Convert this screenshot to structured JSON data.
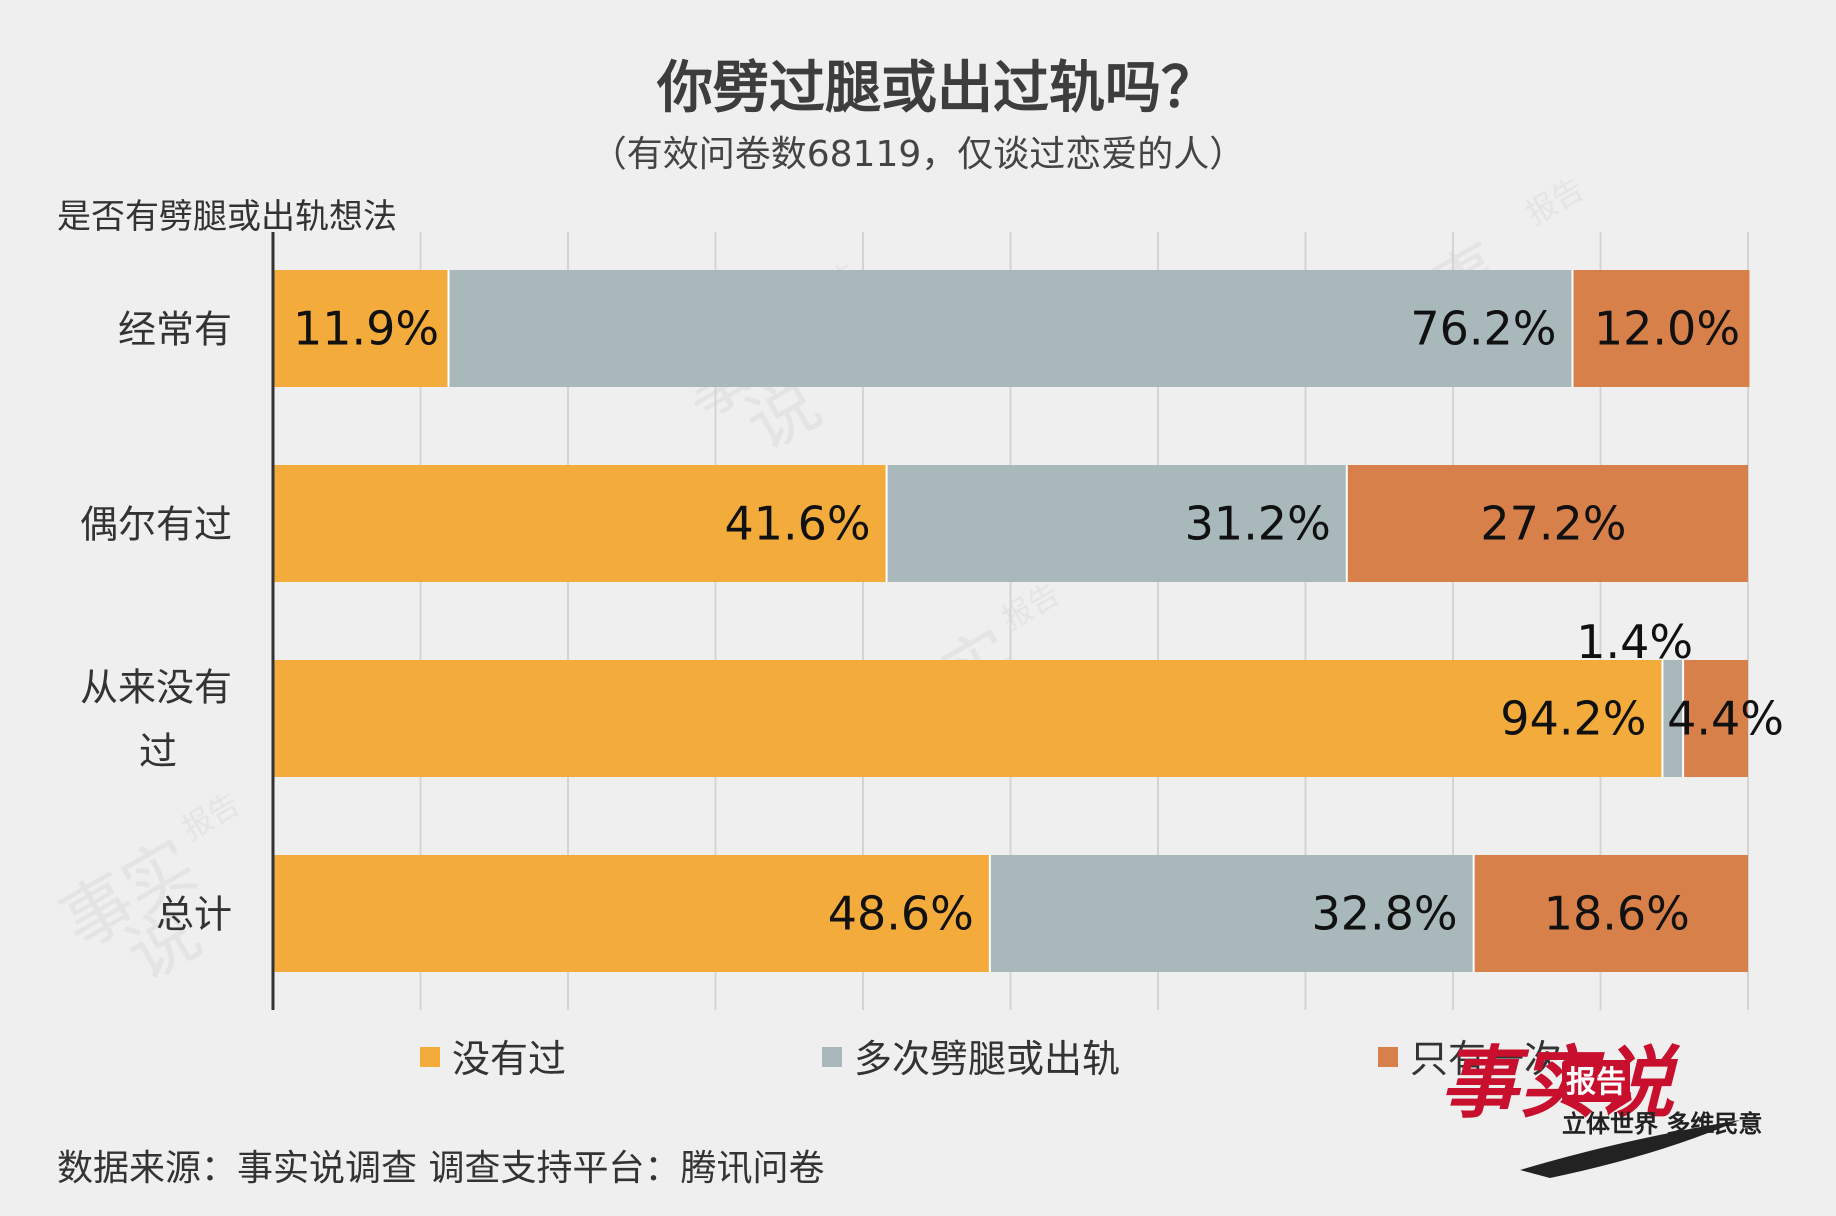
{
  "chart_data": {
    "type": "bar",
    "orientation": "horizontal",
    "stacked": true,
    "title": "你劈过腿或出过轨吗？",
    "subtitle": "（有效问卷数68119，仅谈过恋爱的人）",
    "ylabel": "是否有劈腿或出轨想法",
    "categories": [
      [
        "经常有"
      ],
      [
        "偶尔有过"
      ],
      [
        "从来没有",
        "过"
      ],
      [
        "总计"
      ]
    ],
    "series": [
      {
        "name": "没有过",
        "color": "#f3ac3c",
        "values": [
          11.9,
          41.6,
          94.2,
          48.6
        ],
        "labels": [
          "11.9%",
          "41.6%",
          "94.2%",
          "48.6%"
        ]
      },
      {
        "name": "多次劈腿或出轨",
        "color": "#a8b8bb",
        "values": [
          76.2,
          31.2,
          1.4,
          32.8
        ],
        "labels": [
          "76.2%",
          "31.2%",
          "1.4%",
          "32.8%"
        ]
      },
      {
        "name": "只有一次",
        "color": "#d8804a",
        "values": [
          12.0,
          27.2,
          4.4,
          18.6
        ],
        "labels": [
          "12.0%",
          "27.2%",
          "4.4%",
          "18.6%"
        ]
      }
    ],
    "xlim": [
      0,
      100
    ],
    "grid": true,
    "legend_position": "bottom"
  },
  "footer": {
    "source": "数据来源：事实说调查  调查支持平台：腾讯问卷"
  },
  "logo": {
    "text_main": "事实说",
    "badge": "报告",
    "tagline": "立体世界 多维民意"
  }
}
